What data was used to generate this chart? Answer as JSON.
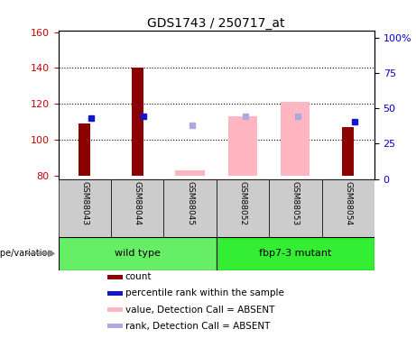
{
  "title": "GDS1743 / 250717_at",
  "samples": [
    "GSM88043",
    "GSM88044",
    "GSM88045",
    "GSM88052",
    "GSM88053",
    "GSM88054"
  ],
  "group1_name": "wild type",
  "group2_name": "fbp7-3 mutant",
  "group1_indices": [
    0,
    1,
    2
  ],
  "group2_indices": [
    3,
    4,
    5
  ],
  "group_color": "#66ee66",
  "ylim_left": [
    78,
    161
  ],
  "ylim_right": [
    0,
    105
  ],
  "yticks_left": [
    80,
    100,
    120,
    140,
    160
  ],
  "yticks_right": [
    0,
    25,
    50,
    75,
    100
  ],
  "ytick_labels_right": [
    "0",
    "25",
    "50",
    "75",
    "100%"
  ],
  "count_bars": {
    "GSM88043": [
      80,
      109
    ],
    "GSM88044": [
      80,
      140
    ],
    "GSM88045": null,
    "GSM88052": null,
    "GSM88053": null,
    "GSM88054": [
      80,
      107
    ]
  },
  "percentile_rank_markers": {
    "GSM88043": 112,
    "GSM88044": 113,
    "GSM88045": null,
    "GSM88052": null,
    "GSM88053": null,
    "GSM88054": 110
  },
  "absent_value_bars": {
    "GSM88043": null,
    "GSM88044": null,
    "GSM88045": [
      80,
      83
    ],
    "GSM88052": [
      80,
      113
    ],
    "GSM88053": [
      80,
      121
    ],
    "GSM88054": null
  },
  "absent_rank_markers": {
    "GSM88043": null,
    "GSM88044": null,
    "GSM88045": 108,
    "GSM88052": 113,
    "GSM88053": 113,
    "GSM88054": null
  },
  "count_color": "#8b0000",
  "rank_color": "#1515cc",
  "absent_val_color": "#ffb6c1",
  "absent_rank_color": "#aaaadd",
  "sample_box_color": "#cccccc",
  "label_color_left": "#cc0000",
  "label_color_right": "#0000cc",
  "legend_items": [
    {
      "label": "count",
      "color": "#8b0000"
    },
    {
      "label": "percentile rank within the sample",
      "color": "#1515cc"
    },
    {
      "label": "value, Detection Call = ABSENT",
      "color": "#ffb6c1"
    },
    {
      "label": "rank, Detection Call = ABSENT",
      "color": "#aaaadd"
    }
  ]
}
